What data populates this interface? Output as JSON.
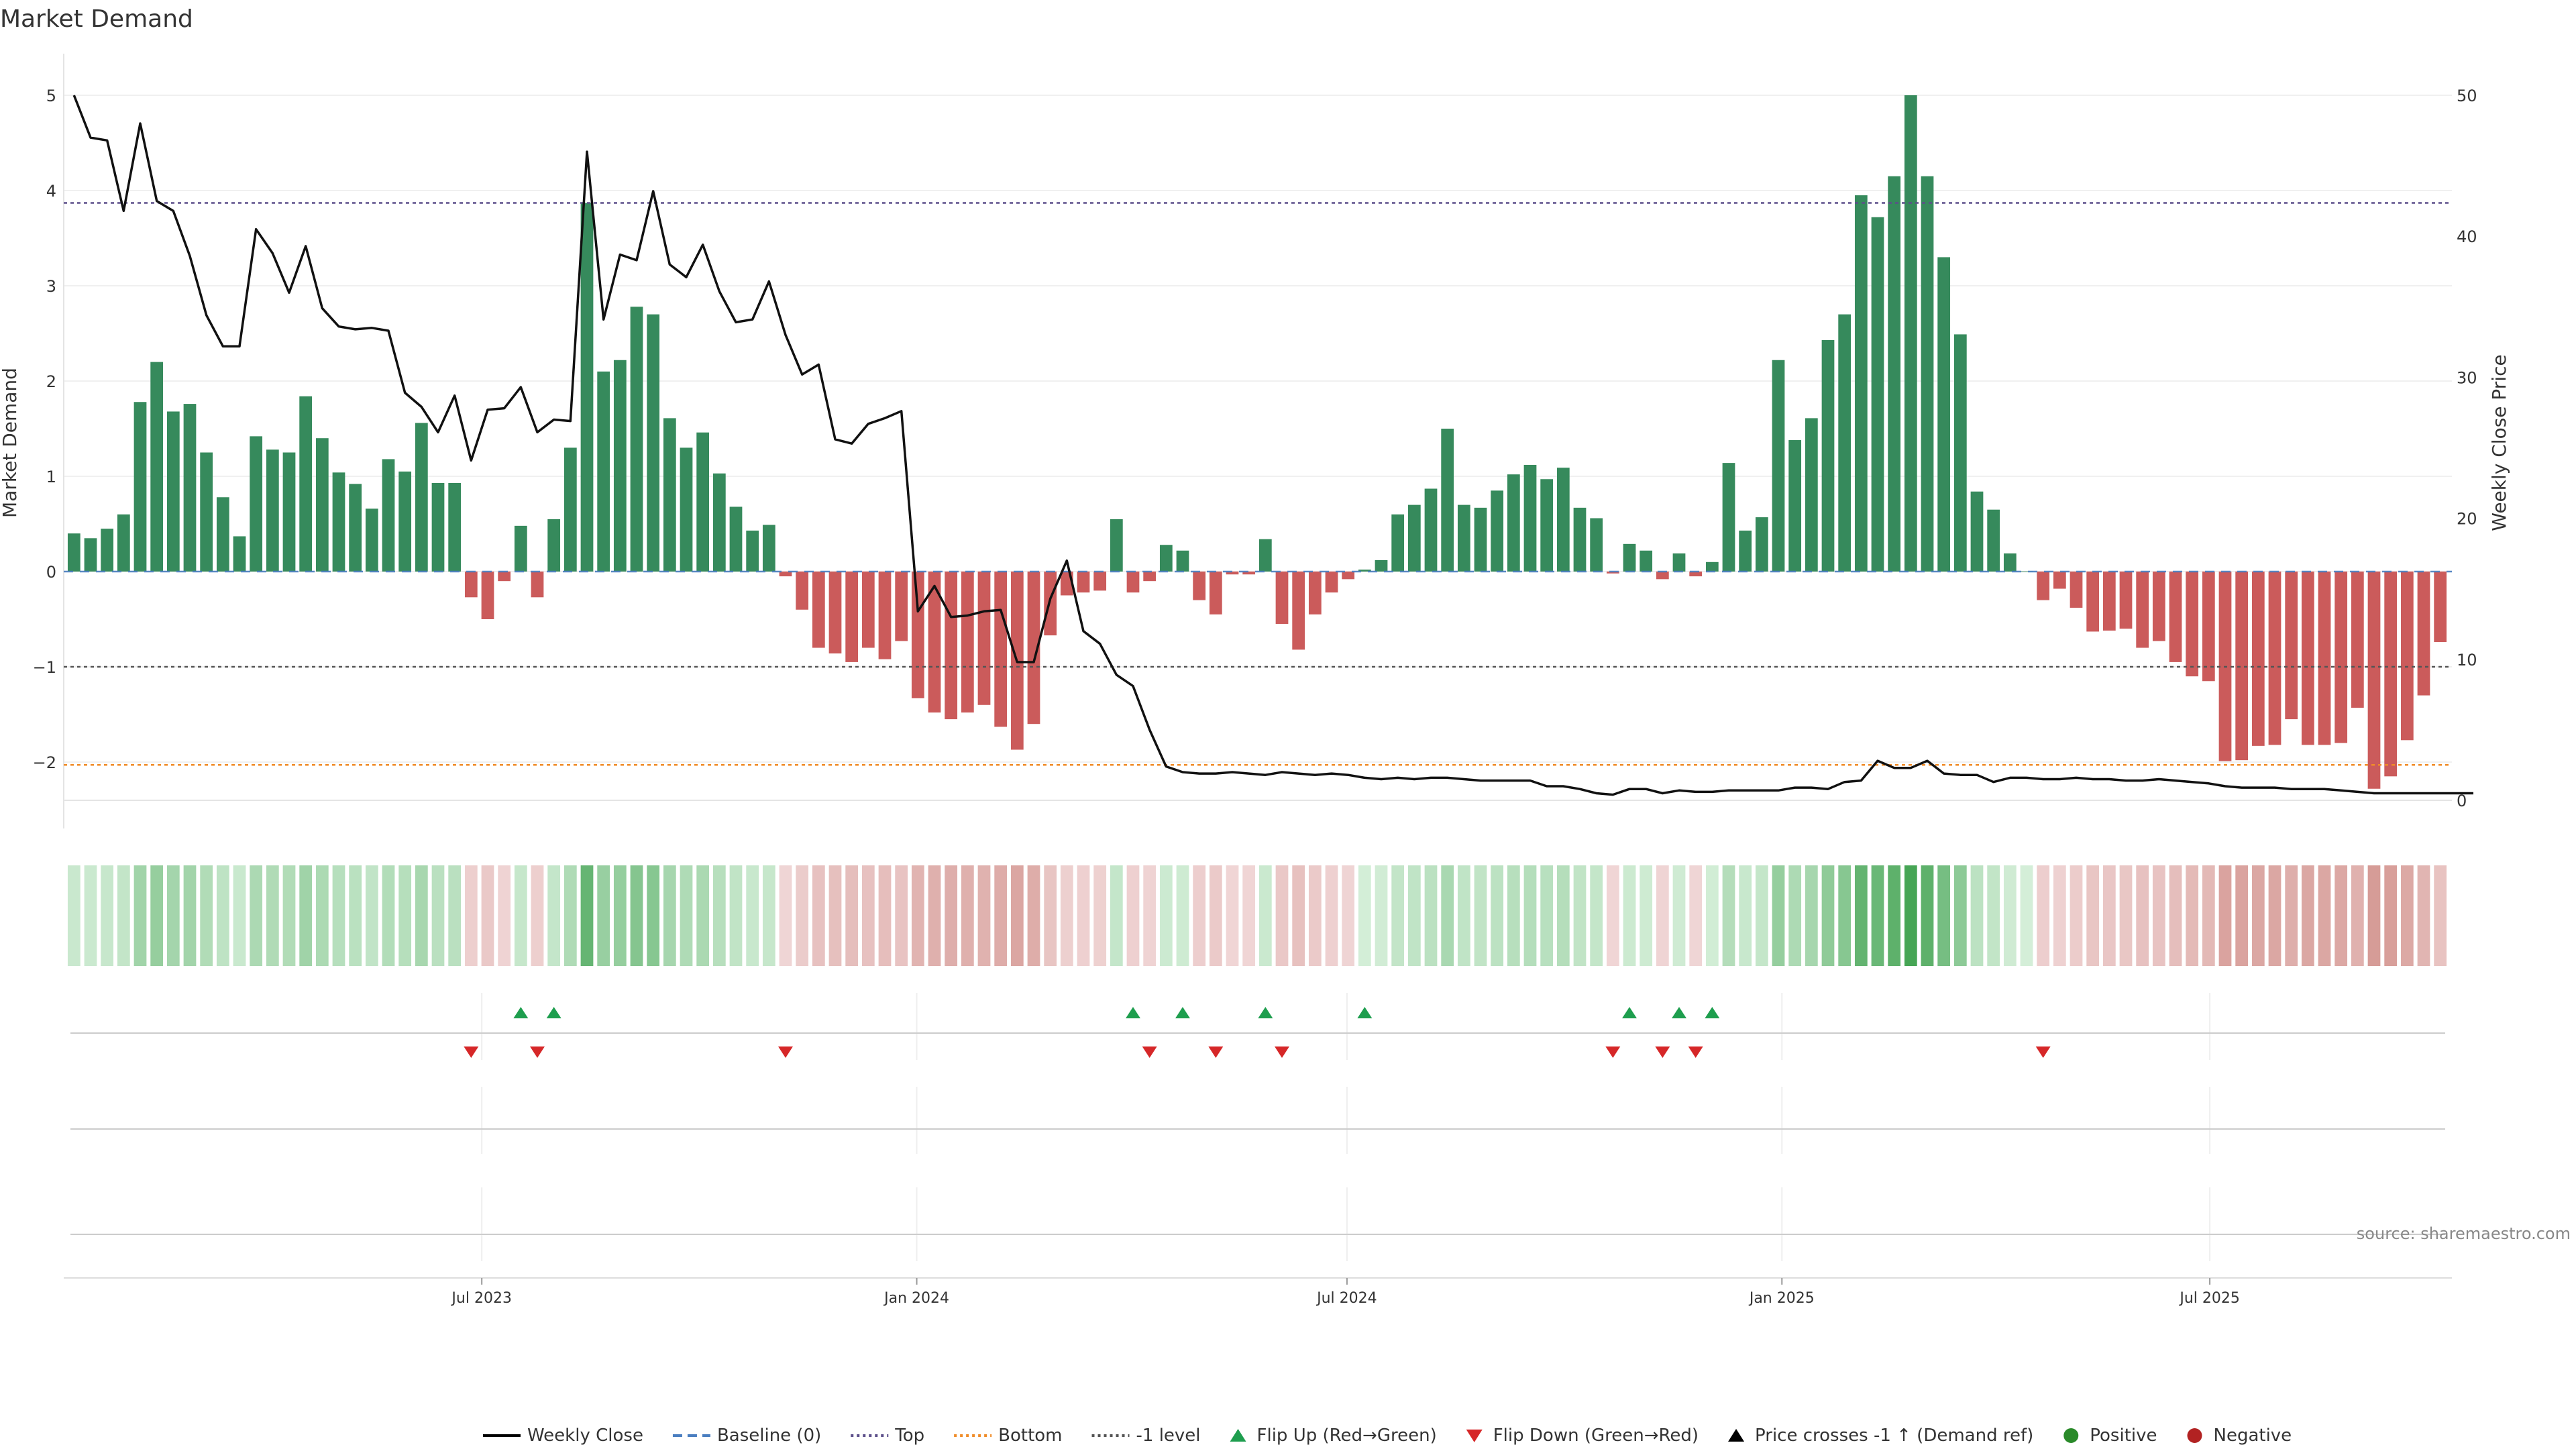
{
  "chart_data": {
    "type": "bar",
    "title": "Market Demand",
    "ylabel": "Market Demand",
    "ylabel_right": "Weekly Close Price",
    "ylim": [
      -2.4,
      5.2
    ],
    "ylim_right": [
      0,
      51
    ],
    "yticks": [
      "−2",
      "−1",
      "0",
      "1",
      "2",
      "3",
      "4",
      "5"
    ],
    "yticks_right": [
      "0",
      "10",
      "20",
      "30",
      "40",
      "50"
    ],
    "x_start": "2023-01-06",
    "x_end": "2025-10-10",
    "x_tick_labels": [
      {
        "date": "2023-07-01",
        "label": "Jul 2023"
      },
      {
        "date": "2024-01-01",
        "label": "Jan 2024"
      },
      {
        "date": "2024-07-01",
        "label": "Jul 2024"
      },
      {
        "date": "2025-01-01",
        "label": "Jan 2025"
      },
      {
        "date": "2025-07-01",
        "label": "Jul 2025"
      }
    ],
    "reference_lines": {
      "top": 3.87,
      "bottom": -2.03,
      "minus_one": -1.0
    },
    "series": [
      {
        "name": "Market Demand",
        "values": [
          0.4,
          0.35,
          0.45,
          0.6,
          1.78,
          2.2,
          1.68,
          1.76,
          1.25,
          0.78,
          0.37,
          1.42,
          1.28,
          1.25,
          1.84,
          1.4,
          1.04,
          0.92,
          0.66,
          1.18,
          1.05,
          1.56,
          0.93,
          0.93,
          -0.27,
          -0.5,
          -0.1,
          0.48,
          -0.27,
          0.55,
          1.3,
          3.87,
          2.1,
          2.22,
          2.78,
          2.7,
          1.61,
          1.3,
          1.46,
          1.03,
          0.68,
          0.43,
          0.49,
          -0.05,
          -0.4,
          -0.8,
          -0.86,
          -0.95,
          -0.8,
          -0.92,
          -0.73,
          -1.33,
          -1.48,
          -1.55,
          -1.48,
          -1.4,
          -1.63,
          -1.87,
          -1.6,
          -0.67,
          -0.25,
          -0.22,
          -0.2,
          0.55,
          -0.22,
          -0.1,
          0.28,
          0.22,
          -0.3,
          -0.45,
          -0.03,
          -0.03,
          0.34,
          -0.55,
          -0.82,
          -0.45,
          -0.22,
          -0.08,
          0.02,
          0.12,
          0.6,
          0.7,
          0.87,
          1.5,
          0.7,
          0.67,
          0.85,
          1.02,
          1.12,
          0.97,
          1.09,
          0.67,
          0.56,
          -0.02,
          0.29,
          0.22,
          -0.08,
          0.19,
          -0.05,
          0.1,
          1.14,
          0.43,
          0.57,
          2.22,
          1.38,
          1.61,
          2.43,
          2.7,
          3.95,
          3.72,
          4.15,
          5.0,
          4.15,
          3.3,
          2.49,
          0.84,
          0.65,
          0.19,
          0.0,
          -0.3,
          -0.18,
          -0.38,
          -0.63,
          -0.62,
          -0.6,
          -0.8,
          -0.73,
          -0.95,
          -1.1,
          -1.15,
          -1.99,
          -1.98,
          -1.83,
          -1.82,
          -1.55,
          -1.82,
          -1.82,
          -1.8,
          -1.43,
          -2.28,
          -2.15,
          -1.77,
          -1.3,
          -0.74
        ]
      },
      {
        "name": "Weekly Close",
        "values": [
          50.0,
          47.0,
          46.8,
          41.8,
          48.0,
          42.5,
          41.8,
          38.6,
          34.4,
          32.2,
          32.2,
          40.5,
          38.8,
          36.0,
          39.3,
          34.9,
          33.6,
          33.4,
          33.5,
          33.3,
          28.9,
          27.9,
          26.1,
          28.7,
          24.1,
          27.7,
          27.8,
          29.3,
          26.1,
          27.0,
          26.9,
          46.0,
          34.1,
          38.7,
          38.3,
          43.2,
          38.0,
          37.1,
          39.4,
          36.1,
          33.9,
          34.1,
          36.8,
          33.0,
          30.2,
          30.9,
          25.6,
          25.3,
          26.7,
          27.1,
          27.6,
          13.4,
          15.2,
          13.0,
          13.1,
          13.4,
          13.5,
          9.8,
          9.8,
          14.3,
          17.0,
          12.0,
          11.1,
          8.9,
          8.1,
          5.0,
          2.4,
          2.0,
          1.9,
          1.9,
          2.0,
          1.9,
          1.8,
          2.0,
          1.9,
          1.8,
          1.9,
          1.8,
          1.6,
          1.5,
          1.6,
          1.5,
          1.6,
          1.6,
          1.5,
          1.4,
          1.4,
          1.4,
          1.4,
          1.0,
          1.0,
          0.8,
          0.5,
          0.4,
          0.8,
          0.8,
          0.5,
          0.7,
          0.6,
          0.6,
          0.7,
          0.7,
          0.7,
          0.7,
          0.9,
          0.9,
          0.8,
          1.3,
          1.4,
          2.8,
          2.3,
          2.3,
          2.8,
          1.9,
          1.8,
          1.8,
          1.3,
          1.6,
          1.6,
          1.5,
          1.5,
          1.6,
          1.5,
          1.5,
          1.4,
          1.4,
          1.5,
          1.4,
          1.3,
          1.2,
          1.0,
          0.9,
          0.9,
          0.9,
          0.8,
          0.8,
          0.8,
          0.7,
          0.6,
          0.5,
          0.5,
          0.5,
          0.5,
          0.5,
          0.5,
          0.5
        ]
      }
    ],
    "flip_up_weeks": [
      27,
      29,
      64,
      67,
      72,
      78,
      94,
      97,
      99
    ],
    "flip_down_weeks": [
      24,
      28,
      43,
      65,
      69,
      73,
      93,
      96,
      98,
      119
    ],
    "legend": {
      "position": "bottom",
      "items": [
        {
          "label": "Weekly Close",
          "kind": "line",
          "color": "#000000"
        },
        {
          "label": "Baseline (0)",
          "kind": "dash",
          "color": "#4a7ec0"
        },
        {
          "label": "Top",
          "kind": "dot",
          "color": "#5c4f8a"
        },
        {
          "label": "Bottom",
          "kind": "dot",
          "color": "#f08c28"
        },
        {
          "label": "-1 level",
          "kind": "dot",
          "color": "#555555"
        },
        {
          "label": "Flip Up (Red→Green)",
          "kind": "tri-up",
          "color": "#1e9e4e"
        },
        {
          "label": "Flip Down (Green→Red)",
          "kind": "tri-down",
          "color": "#d62728"
        },
        {
          "label": "Price crosses -1 ↑ (Demand ref)",
          "kind": "tri-up",
          "color": "#000000"
        },
        {
          "label": "Positive",
          "kind": "circle",
          "color": "#2a8a2a"
        },
        {
          "label": "Negative",
          "kind": "circle",
          "color": "#b22222"
        }
      ]
    },
    "colors": {
      "positive": "#368a5c",
      "negative": "#cb5b5b",
      "price": "#111111",
      "top": "#5c4f8a",
      "bottom": "#f08c28",
      "minus_one": "#555555"
    },
    "source": "source: sharemaestro.com"
  }
}
